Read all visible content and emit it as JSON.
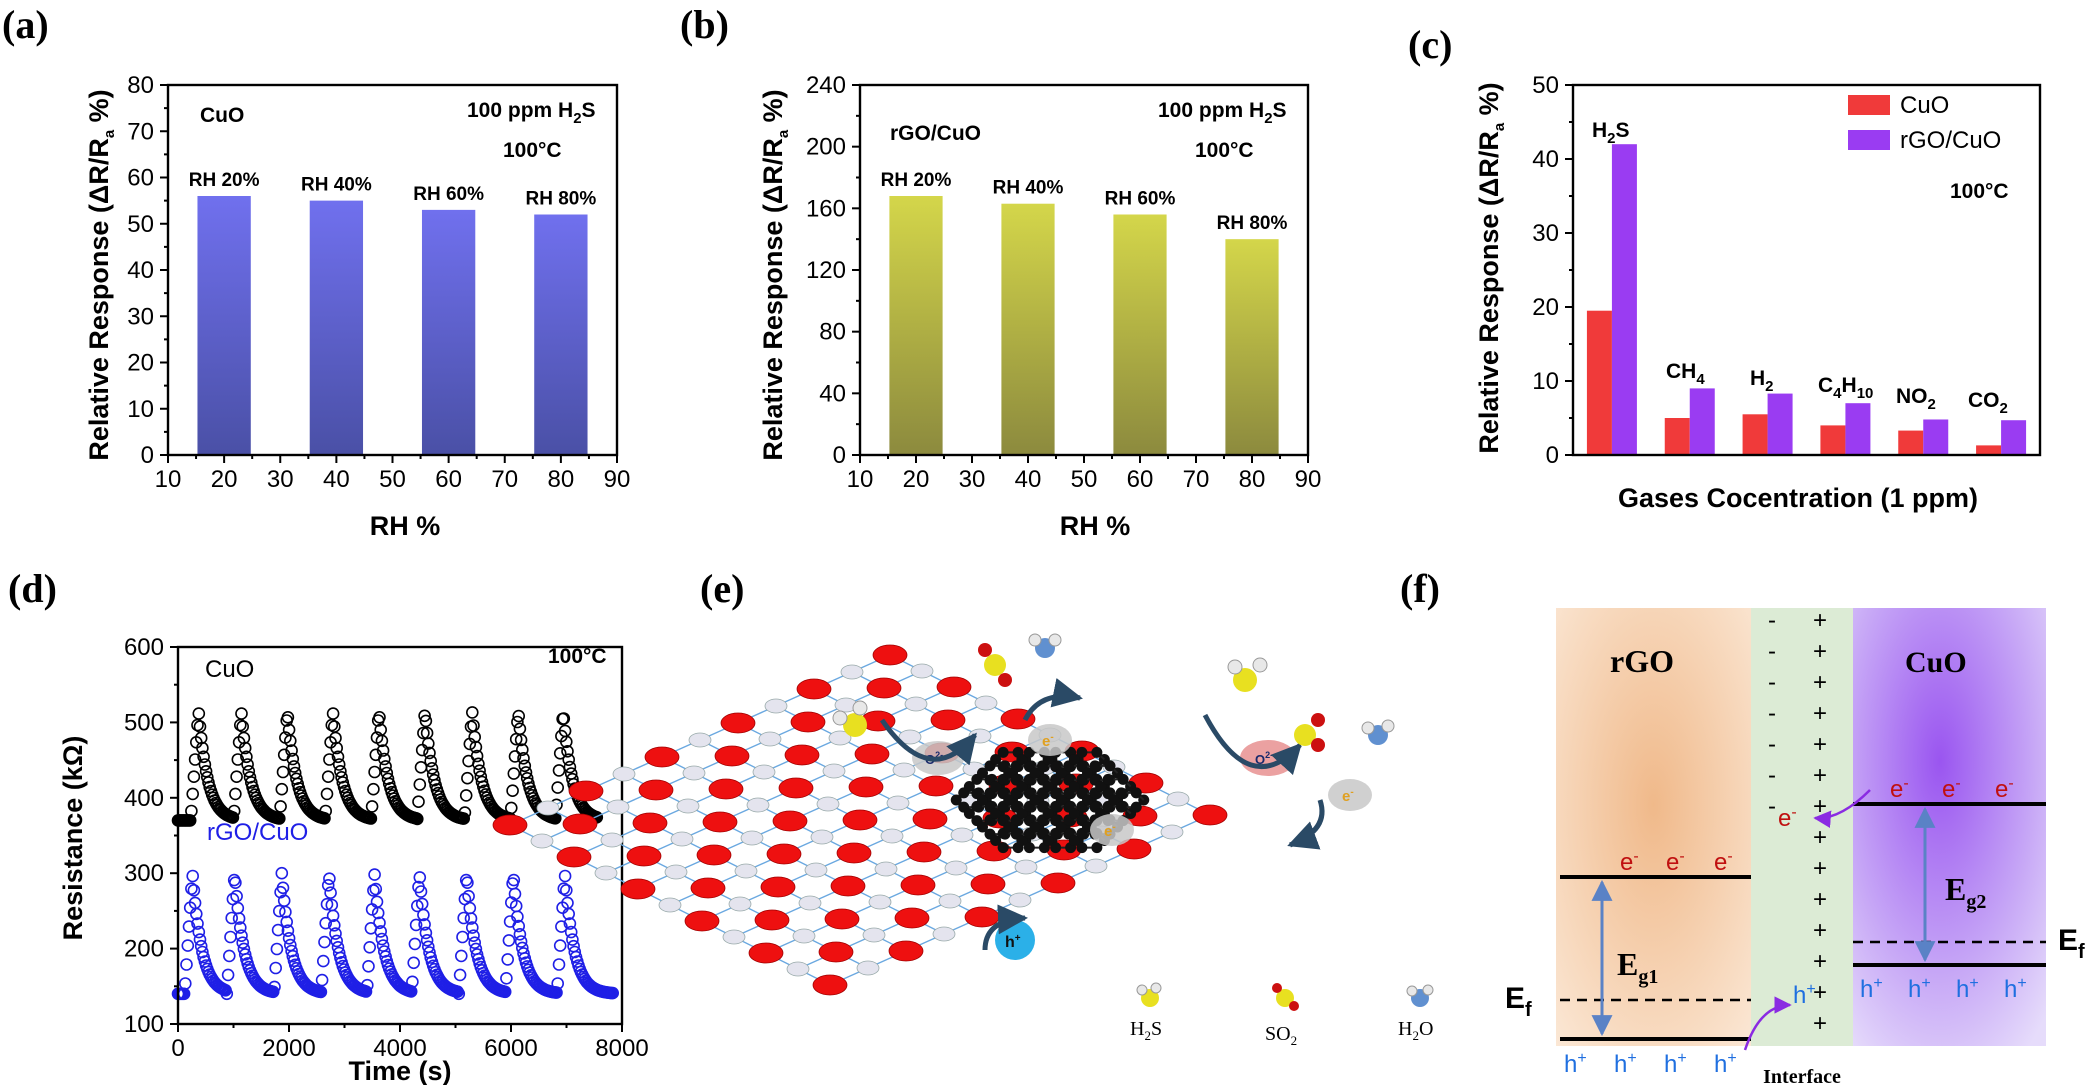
{
  "panels": {
    "a": {
      "label": "(a)"
    },
    "b": {
      "label": "(b)"
    },
    "c": {
      "label": "(c)"
    },
    "d": {
      "label": "(d)"
    },
    "e": {
      "label": "(e)"
    },
    "f": {
      "label": "(f)"
    }
  },
  "chart_data": [
    {
      "id": "a",
      "type": "bar",
      "x": [
        20,
        40,
        60,
        80
      ],
      "values": [
        56,
        55,
        53,
        52
      ],
      "bar_labels": [
        "RH 20%",
        "RH 40%",
        "RH 60%",
        "RH 80%"
      ],
      "xlabel": "RH %",
      "ylabel": "Relative Response (ΔR/Ra %)",
      "xlim": [
        10,
        90
      ],
      "ylim": [
        0,
        80
      ],
      "xticks": [
        10,
        20,
        30,
        40,
        50,
        60,
        70,
        80,
        90
      ],
      "yticks": [
        0,
        10,
        20,
        30,
        40,
        50,
        60,
        70,
        80
      ],
      "annotations": {
        "material": "CuO",
        "gas": "100 ppm H2S",
        "temperature": "100°C"
      },
      "colors": {
        "bar_top": "#7070ee",
        "bar_bottom": "#4a50a6"
      }
    },
    {
      "id": "b",
      "type": "bar",
      "x": [
        20,
        40,
        60,
        80
      ],
      "values": [
        168,
        163,
        156,
        140
      ],
      "bar_labels": [
        "RH 20%",
        "RH 40%",
        "RH 60%",
        "RH 80%"
      ],
      "xlabel": "RH %",
      "ylabel": "Relative Response (ΔR/Ra %)",
      "xlim": [
        10,
        90
      ],
      "ylim": [
        0,
        240
      ],
      "xticks": [
        10,
        20,
        30,
        40,
        50,
        60,
        70,
        80,
        90
      ],
      "yticks": [
        0,
        40,
        80,
        120,
        160,
        200,
        240
      ],
      "annotations": {
        "material": "rGO/CuO",
        "gas": "100 ppm H2S",
        "temperature": "100°C"
      },
      "colors": {
        "bar_top": "#d4d64a",
        "bar_bottom": "#8c8a3e"
      }
    },
    {
      "id": "c",
      "type": "bar",
      "categories": [
        "H2S",
        "CH4",
        "H2",
        "C4H10",
        "NO2",
        "CO2"
      ],
      "series": [
        {
          "name": "CuO",
          "values": [
            19.5,
            5.0,
            5.5,
            4.0,
            3.3,
            1.3
          ],
          "color": "#f03a3a"
        },
        {
          "name": "rGO/CuO",
          "values": [
            42,
            9,
            8.3,
            7,
            4.8,
            4.7
          ],
          "color": "#9a3cf2"
        }
      ],
      "xlabel": "Gases Cocentration (1 ppm)",
      "ylabel": "Relative Response (ΔR/Ra %)",
      "ylim": [
        0,
        50
      ],
      "yticks": [
        0,
        10,
        20,
        30,
        40,
        50
      ],
      "annotations": {
        "temperature": "100°C"
      },
      "legend": "top-right"
    },
    {
      "id": "d",
      "type": "scatter",
      "xlabel": "Time (s)",
      "ylabel": "Resistance (kΩ)",
      "xlim": [
        0,
        8000
      ],
      "ylim": [
        100,
        600
      ],
      "xticks": [
        0,
        2000,
        4000,
        6000,
        8000
      ],
      "yticks": [
        100,
        200,
        300,
        400,
        500,
        600
      ],
      "annotations": {
        "temperature": "100°C"
      },
      "series": [
        {
          "name": "CuO",
          "baseline": 370,
          "peak": 515,
          "color": "#000000",
          "cycle_starts": [
            230,
            1000,
            1830,
            2650,
            3480,
            4310,
            5160,
            5990,
            6800
          ],
          "x_end": 7550
        },
        {
          "name": "rGO/CuO",
          "baseline": 140,
          "peak": 300,
          "color": "#1f1fe6",
          "cycle_starts": [
            120,
            880,
            1730,
            2580,
            3400,
            4210,
            5060,
            5900,
            6830
          ],
          "x_end": 7850
        }
      ]
    }
  ],
  "diagram_e": {
    "legend": [
      "H2S",
      "SO2",
      "H2O"
    ],
    "charges": {
      "oxygen": "O2-",
      "electron": "e-",
      "hole": "h+"
    }
  },
  "diagram_f": {
    "rgo_label": "rGO",
    "cuo_label": "CuO",
    "interface_label": "Interface",
    "gap_left": "Eg1",
    "gap_right": "Eg2",
    "fermi": "Ef",
    "electron": "e-",
    "hole": "h+",
    "minus": "-",
    "plus": "+"
  }
}
